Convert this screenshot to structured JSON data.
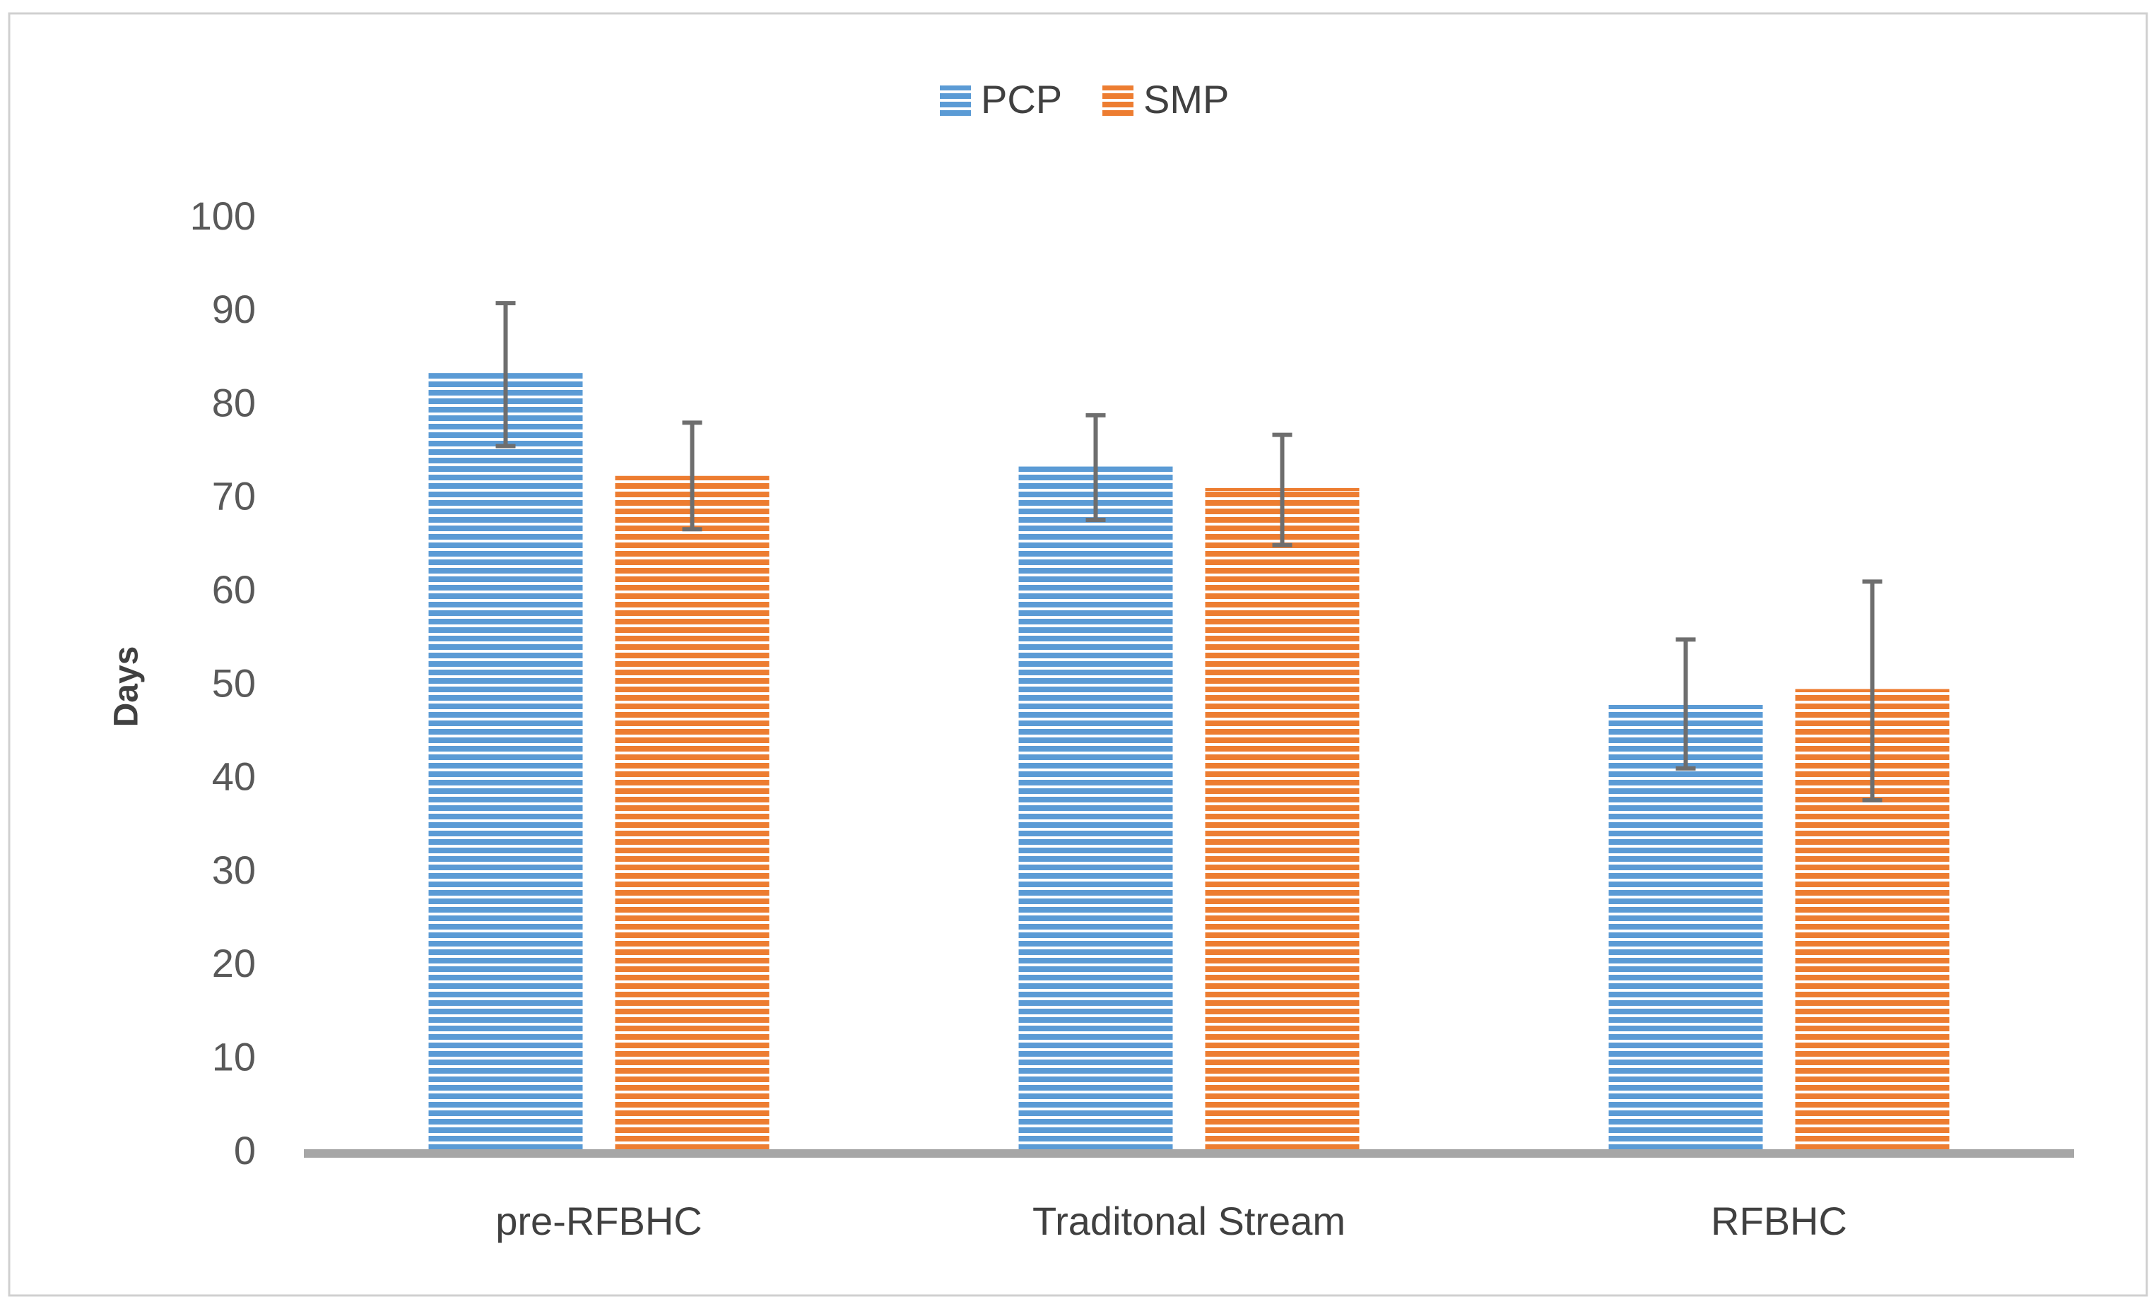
{
  "chart_data": {
    "type": "bar",
    "title": "",
    "xlabel": "",
    "ylabel": "Days",
    "ylim": [
      0,
      100
    ],
    "yticks": [
      0,
      10,
      20,
      30,
      40,
      50,
      60,
      70,
      80,
      90,
      100
    ],
    "categories": [
      "pre-RFBHC",
      "Traditonal Stream",
      "RFBHC"
    ],
    "series": [
      {
        "name": "PCP",
        "color": "#5B9BD5",
        "values": [
          83.5,
          73.5,
          48
        ],
        "error_low": [
          75.7,
          67.8,
          41.2
        ],
        "error_high": [
          91,
          79,
          55
        ]
      },
      {
        "name": "SMP",
        "color": "#ED7D31",
        "values": [
          72.5,
          71.2,
          49.7
        ],
        "error_low": [
          66.8,
          65.1,
          37.8
        ],
        "error_high": [
          78.2,
          76.9,
          61.2
        ]
      }
    ],
    "legend_position": "top-center",
    "grid": false,
    "bar_fill": "horizontal-stripes",
    "error_bar_color": "#6e6e6e",
    "axis_color": "#a6a6a6"
  }
}
